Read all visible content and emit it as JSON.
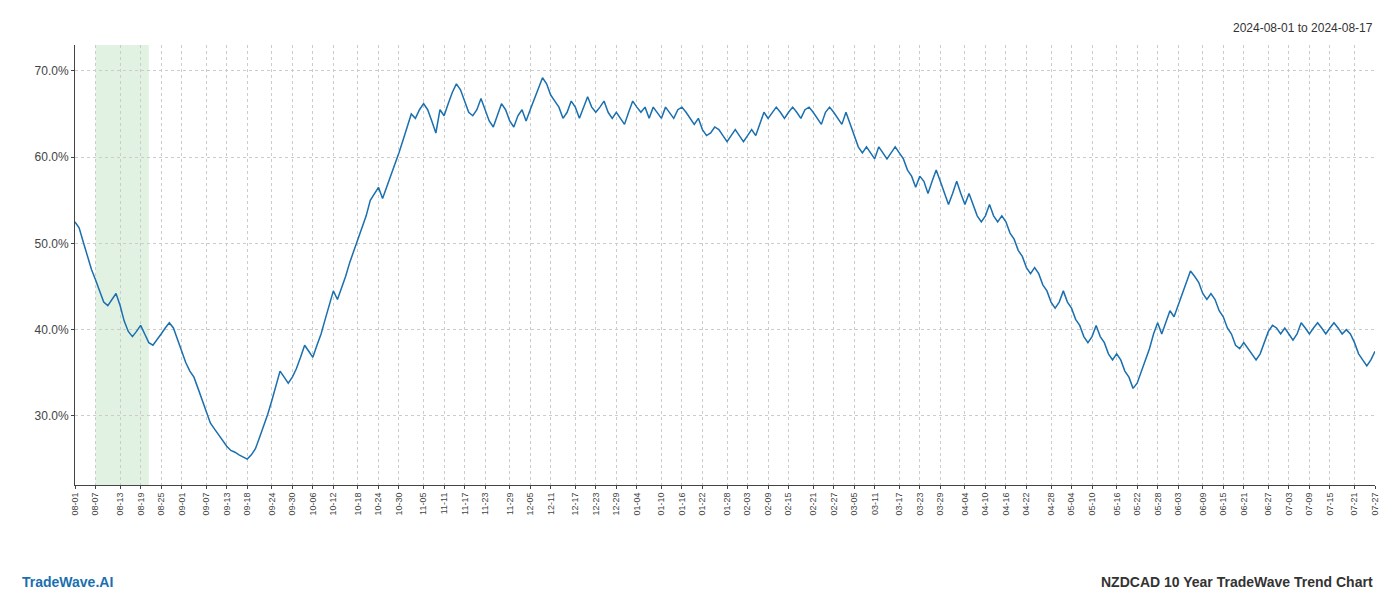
{
  "chart_data": {
    "type": "line",
    "title": "NZDCAD 10 Year TradeWave Trend Chart",
    "subtitle": "2024-08-01 to 2024-08-17",
    "annotations": [
      "TradeWave.AI"
    ],
    "color": "#1a6faf",
    "grid": true,
    "highlight": {
      "start": 5,
      "end": 18,
      "color": "#d5ecd5"
    },
    "ylim": [
      22,
      73
    ],
    "yticks": [
      {
        "value": 30,
        "label": "30.0%"
      },
      {
        "value": 40,
        "label": "40.0%"
      },
      {
        "value": 50,
        "label": "50.0%"
      },
      {
        "value": 60,
        "label": "60.0%"
      },
      {
        "value": 70,
        "label": "70.0%"
      }
    ],
    "categories": [
      "08-01",
      null,
      null,
      null,
      null,
      "08-07",
      null,
      null,
      null,
      null,
      null,
      "08-13",
      null,
      null,
      null,
      null,
      "08-19",
      null,
      null,
      null,
      null,
      "08-25",
      null,
      null,
      null,
      null,
      "09-01",
      null,
      null,
      null,
      null,
      null,
      "09-07",
      null,
      null,
      null,
      null,
      "09-13",
      null,
      null,
      null,
      null,
      "09-18",
      null,
      null,
      null,
      null,
      null,
      "09-24",
      null,
      null,
      null,
      null,
      "09-30",
      null,
      null,
      null,
      null,
      "10-06",
      null,
      null,
      null,
      null,
      "10-12",
      null,
      null,
      null,
      null,
      null,
      "10-18",
      null,
      null,
      null,
      null,
      "10-24",
      null,
      null,
      null,
      null,
      "10-30",
      null,
      null,
      null,
      null,
      null,
      "11-05",
      null,
      null,
      null,
      null,
      "11-11",
      null,
      null,
      null,
      null,
      "11-17",
      null,
      null,
      null,
      null,
      "11-23",
      null,
      null,
      null,
      null,
      null,
      "11-29",
      null,
      null,
      null,
      null,
      "12-05",
      null,
      null,
      null,
      null,
      "12-11",
      null,
      null,
      null,
      null,
      null,
      "12-17",
      null,
      null,
      null,
      null,
      "12-23",
      null,
      null,
      null,
      null,
      "12-29",
      null,
      null,
      null,
      null,
      "01-04",
      null,
      null,
      null,
      null,
      null,
      "01-10",
      null,
      null,
      null,
      null,
      "01-16",
      null,
      null,
      null,
      null,
      "01-22",
      null,
      null,
      null,
      null,
      null,
      "01-28",
      null,
      null,
      null,
      null,
      "02-03",
      null,
      null,
      null,
      null,
      "02-09",
      null,
      null,
      null,
      null,
      "02-15",
      null,
      null,
      null,
      null,
      null,
      "02-21",
      null,
      null,
      null,
      null,
      "02-27",
      null,
      null,
      null,
      null,
      "03-05",
      null,
      null,
      null,
      null,
      "03-11",
      null,
      null,
      null,
      null,
      null,
      "03-17",
      null,
      null,
      null,
      null,
      "03-23",
      null,
      null,
      null,
      null,
      "03-29",
      null,
      null,
      null,
      null,
      null,
      "04-04",
      null,
      null,
      null,
      null,
      "04-10",
      null,
      null,
      null,
      null,
      "04-16",
      null,
      null,
      null,
      null,
      "04-22",
      null,
      null,
      null,
      null,
      null,
      "04-28",
      null,
      null,
      null,
      null,
      "05-04",
      null,
      null,
      null,
      null,
      "05-10",
      null,
      null,
      null,
      null,
      null,
      "05-16",
      null,
      null,
      null,
      null,
      "05-22",
      null,
      null,
      null,
      null,
      "05-28",
      null,
      null,
      null,
      null,
      "06-03",
      null,
      null,
      null,
      null,
      null,
      "06-09",
      null,
      null,
      null,
      null,
      "06-15",
      null,
      null,
      null,
      null,
      "06-21",
      null,
      null,
      null,
      null,
      null,
      "06-27",
      null,
      null,
      null,
      null,
      "07-03",
      null,
      null,
      null,
      null,
      "07-09",
      null,
      null,
      null,
      null,
      "07-15",
      null,
      null,
      null,
      null,
      null,
      "07-21",
      null,
      null,
      null,
      null,
      "07-27"
    ],
    "values": [
      52.5,
      51.8,
      50.2,
      48.5,
      47.0,
      45.8,
      44.5,
      43.2,
      42.8,
      43.5,
      44.2,
      42.8,
      41.0,
      39.8,
      39.2,
      39.8,
      40.5,
      39.5,
      38.5,
      38.2,
      38.8,
      39.5,
      40.2,
      40.8,
      40.2,
      38.8,
      37.5,
      36.2,
      35.2,
      34.5,
      33.2,
      31.8,
      30.5,
      29.2,
      28.5,
      27.8,
      27.2,
      26.5,
      26.0,
      25.8,
      25.5,
      25.2,
      25.0,
      25.5,
      26.2,
      27.5,
      28.8,
      30.2,
      31.8,
      33.5,
      35.2,
      34.5,
      33.8,
      34.5,
      35.5,
      36.8,
      38.2,
      37.5,
      36.8,
      38.2,
      39.5,
      41.2,
      42.8,
      44.5,
      43.5,
      44.8,
      46.2,
      47.8,
      49.2,
      50.5,
      51.8,
      53.2,
      55.0,
      55.8,
      56.5,
      55.2,
      56.5,
      57.8,
      59.2,
      60.5,
      62.0,
      63.5,
      65.0,
      64.5,
      65.5,
      66.2,
      65.5,
      64.2,
      62.8,
      65.5,
      64.8,
      66.2,
      67.5,
      68.5,
      67.8,
      66.5,
      65.2,
      64.8,
      65.5,
      66.8,
      65.5,
      64.2,
      63.5,
      64.8,
      66.2,
      65.5,
      64.2,
      63.5,
      64.8,
      65.5,
      64.2,
      65.5,
      66.8,
      68.0,
      69.2,
      68.5,
      67.2,
      66.5,
      65.8,
      64.5,
      65.2,
      66.5,
      65.8,
      64.5,
      65.8,
      67.0,
      65.8,
      65.2,
      65.8,
      66.5,
      65.2,
      64.5,
      65.2,
      64.5,
      63.8,
      65.2,
      66.5,
      65.8,
      65.2,
      65.8,
      64.5,
      65.8,
      65.2,
      64.5,
      65.8,
      65.2,
      64.5,
      65.5,
      65.8,
      65.2,
      64.5,
      63.8,
      64.5,
      63.2,
      62.5,
      62.8,
      63.5,
      63.2,
      62.5,
      61.8,
      62.5,
      63.2,
      62.5,
      61.8,
      62.5,
      63.2,
      62.5,
      63.8,
      65.2,
      64.5,
      65.2,
      65.8,
      65.2,
      64.5,
      65.2,
      65.8,
      65.2,
      64.5,
      65.5,
      65.8,
      65.2,
      64.5,
      63.8,
      65.2,
      65.8,
      65.2,
      64.5,
      63.8,
      65.2,
      63.8,
      62.5,
      61.2,
      60.5,
      61.2,
      60.5,
      59.8,
      61.2,
      60.5,
      59.8,
      60.5,
      61.2,
      60.5,
      59.8,
      58.5,
      57.8,
      56.5,
      57.8,
      57.2,
      55.8,
      57.2,
      58.5,
      57.2,
      55.8,
      54.5,
      55.8,
      57.2,
      55.8,
      54.5,
      55.8,
      54.5,
      53.2,
      52.5,
      53.2,
      54.5,
      53.2,
      52.5,
      53.2,
      52.5,
      51.2,
      50.5,
      49.2,
      48.5,
      47.2,
      46.5,
      47.2,
      46.5,
      45.2,
      44.5,
      43.2,
      42.5,
      43.2,
      44.5,
      43.2,
      42.5,
      41.2,
      40.5,
      39.2,
      38.5,
      39.2,
      40.5,
      39.2,
      38.5,
      37.2,
      36.5,
      37.2,
      36.5,
      35.2,
      34.5,
      33.2,
      33.8,
      35.2,
      36.5,
      37.8,
      39.5,
      40.8,
      39.5,
      40.8,
      42.2,
      41.5,
      42.8,
      44.2,
      45.5,
      46.8,
      46.2,
      45.5,
      44.2,
      43.5,
      44.2,
      43.5,
      42.2,
      41.5,
      40.2,
      39.5,
      38.2,
      37.8,
      38.5,
      37.8,
      37.2,
      36.5,
      37.2,
      38.5,
      39.8,
      40.5,
      40.2,
      39.5,
      40.2,
      39.5,
      38.8,
      39.5,
      40.8,
      40.2,
      39.5,
      40.2,
      40.8,
      40.2,
      39.5,
      40.2,
      40.8,
      40.2,
      39.5,
      40.0,
      39.5,
      38.5,
      37.2,
      36.5,
      35.8,
      36.5,
      37.5
    ]
  }
}
